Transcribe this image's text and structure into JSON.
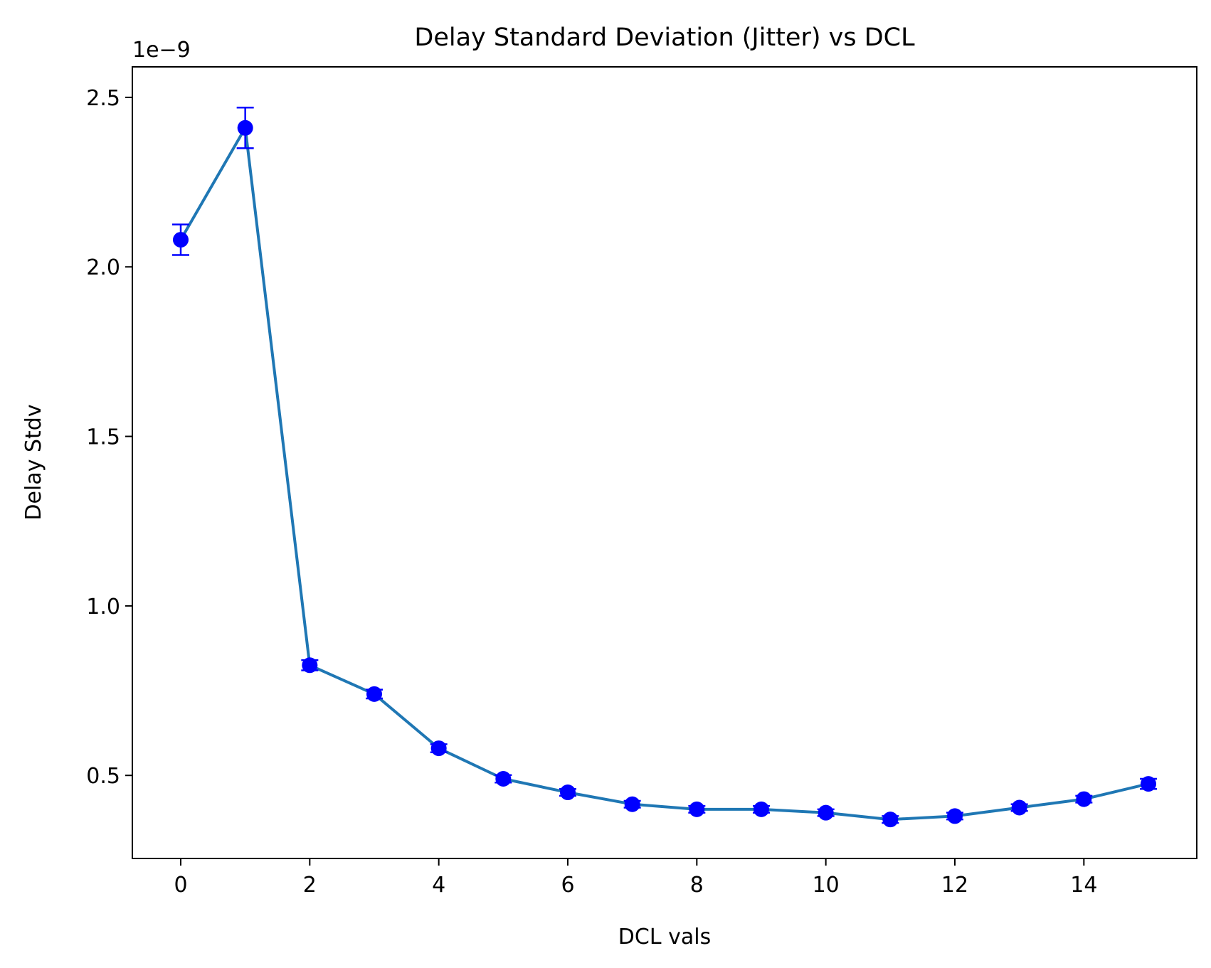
{
  "chart_data": {
    "type": "line",
    "title": "Delay Standard Deviation (Jitter) vs DCL",
    "xlabel": "DCL vals",
    "ylabel": "Delay Stdv",
    "y_offset_label": "1e−9",
    "xlim": [
      -0.75,
      15.75
    ],
    "ylim": [
      0.255,
      2.59
    ],
    "x_ticks": [
      0,
      2,
      4,
      6,
      8,
      10,
      12,
      14
    ],
    "x_tick_labels": [
      "0",
      "2",
      "4",
      "6",
      "8",
      "10",
      "12",
      "14"
    ],
    "y_ticks": [
      0.5,
      1.0,
      1.5,
      2.0,
      2.5
    ],
    "y_tick_labels": [
      "0.5",
      "1.0",
      "1.5",
      "2.0",
      "2.5"
    ],
    "grid": false,
    "legend": "none",
    "series": [
      {
        "x": [
          0,
          1,
          2,
          3,
          4,
          5,
          6,
          7,
          8,
          9,
          10,
          11,
          12,
          13,
          14,
          15
        ],
        "y": [
          2.08,
          2.41,
          0.825,
          0.74,
          0.58,
          0.49,
          0.45,
          0.415,
          0.4,
          0.4,
          0.39,
          0.37,
          0.38,
          0.405,
          0.43,
          0.475
        ],
        "yerr": [
          0.045,
          0.06,
          0.015,
          0.013,
          0.012,
          0.011,
          0.01,
          0.01,
          0.01,
          0.01,
          0.01,
          0.01,
          0.01,
          0.01,
          0.01,
          0.015
        ],
        "line_color": "#1f77b4",
        "marker_color": "#0000ff",
        "errorbar_color": "#0000ff"
      }
    ]
  }
}
